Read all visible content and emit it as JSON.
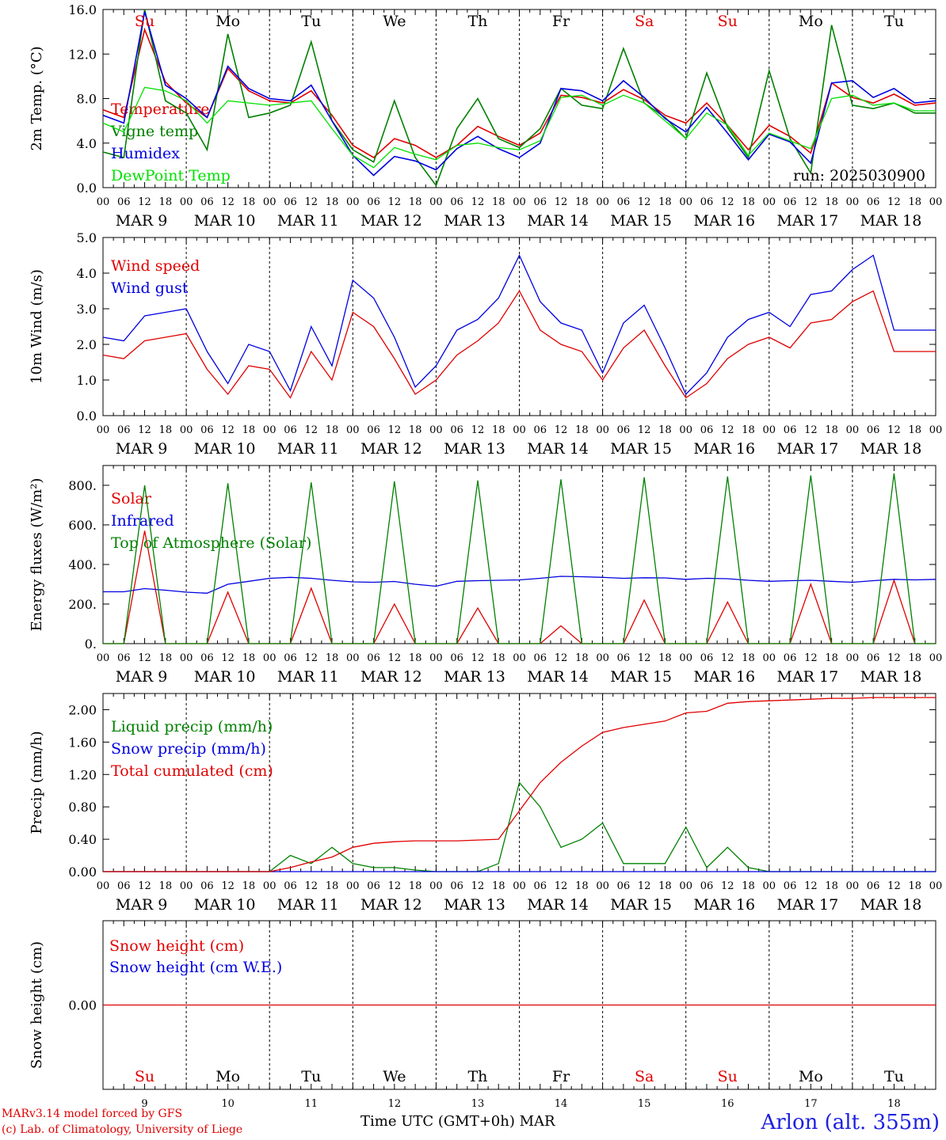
{
  "footer": {
    "credit_line1": "MARv3.14 model forced by GFS",
    "credit_line2": "(c) Lab. of Climatology, University of Liege",
    "time_label": "Time UTC (GMT+0h) MAR",
    "station": "Arlon (alt. 355m)"
  },
  "chart_data": [
    {
      "type": "line",
      "ylabel": "2m Temp. (°C)",
      "ylim": [
        0,
        16
      ],
      "yticks": [
        "0.0",
        "4.0",
        "8.0",
        "12.0",
        "16.0"
      ],
      "annotation": "run: 2025030900",
      "day_names": [
        "Su",
        "Mo",
        "Tu",
        "We",
        "Th",
        "Fr",
        "Sa",
        "Su",
        "Mo",
        "Tu"
      ],
      "weekend_flags": [
        true,
        false,
        false,
        false,
        false,
        false,
        true,
        true,
        false,
        false
      ],
      "x_hours": [
        0,
        6,
        12,
        18,
        24,
        30,
        36,
        42,
        48,
        54,
        60,
        66,
        72,
        78,
        84,
        90,
        96,
        102,
        108,
        114,
        120,
        126,
        132,
        138,
        144,
        150,
        156,
        162,
        168,
        174,
        180,
        186,
        192,
        198,
        204,
        210,
        216,
        222,
        228,
        234,
        240
      ],
      "series": [
        {
          "name": "Temperature",
          "color": "#e00000",
          "values": [
            7.0,
            6.3,
            14.2,
            9.5,
            7.6,
            6.3,
            10.7,
            8.7,
            7.8,
            7.6,
            8.7,
            6.5,
            3.8,
            2.7,
            4.4,
            3.8,
            2.7,
            3.8,
            5.5,
            4.6,
            3.8,
            4.9,
            8.3,
            8.1,
            7.6,
            8.8,
            7.9,
            6.5,
            5.8,
            7.6,
            5.6,
            3.4,
            5.6,
            4.6,
            3.1,
            9.4,
            8.1,
            7.6,
            8.4,
            7.4,
            7.6
          ]
        },
        {
          "name": "Vigne temp",
          "color": "#008000",
          "values": [
            3.2,
            2.7,
            16.0,
            7.8,
            6.7,
            3.4,
            13.8,
            6.3,
            6.7,
            7.4,
            13.1,
            6.0,
            3.4,
            2.3,
            7.8,
            2.7,
            0.2,
            5.3,
            8.0,
            4.4,
            3.6,
            5.3,
            8.9,
            7.4,
            7.1,
            12.5,
            7.6,
            6.3,
            4.4,
            10.3,
            5.4,
            2.7,
            10.5,
            4.4,
            1.3,
            14.6,
            7.4,
            7.1,
            7.6,
            6.7,
            6.7
          ]
        },
        {
          "name": "Humidex",
          "color": "#0000e0",
          "values": [
            6.5,
            5.8,
            15.8,
            9.2,
            8.0,
            6.3,
            10.9,
            8.9,
            8.0,
            7.8,
            9.2,
            6.0,
            2.9,
            1.1,
            2.8,
            2.4,
            1.6,
            3.5,
            4.6,
            3.5,
            2.7,
            4.0,
            8.9,
            8.7,
            7.8,
            9.6,
            8.1,
            6.2,
            5.0,
            7.2,
            4.9,
            2.5,
            4.8,
            4.1,
            2.2,
            9.4,
            9.6,
            8.1,
            8.9,
            7.6,
            7.8
          ]
        },
        {
          "name": "DewPoint Temp",
          "color": "#00e000",
          "values": [
            5.8,
            5.0,
            9.0,
            8.7,
            7.8,
            5.8,
            7.8,
            7.6,
            7.4,
            7.6,
            7.8,
            5.3,
            2.9,
            1.8,
            3.6,
            3.0,
            2.5,
            3.8,
            4.0,
            3.6,
            3.4,
            4.2,
            8.1,
            8.3,
            7.4,
            8.3,
            7.6,
            6.0,
            4.4,
            6.7,
            5.6,
            2.9,
            4.9,
            4.2,
            3.5,
            8.0,
            8.3,
            7.4,
            7.6,
            6.9,
            6.9
          ]
        }
      ]
    },
    {
      "type": "line",
      "ylabel": "10m Wind (m/s)",
      "ylim": [
        0,
        5
      ],
      "yticks": [
        "0.0",
        "1.0",
        "2.0",
        "3.0",
        "4.0",
        "5.0"
      ],
      "x_hours": [
        0,
        6,
        12,
        18,
        24,
        30,
        36,
        42,
        48,
        54,
        60,
        66,
        72,
        78,
        84,
        90,
        96,
        102,
        108,
        114,
        120,
        126,
        132,
        138,
        144,
        150,
        156,
        162,
        168,
        174,
        180,
        186,
        192,
        198,
        204,
        210,
        216,
        222,
        228,
        234,
        240
      ],
      "series": [
        {
          "name": "Wind speed",
          "color": "#e00000",
          "values": [
            1.7,
            1.6,
            2.1,
            2.2,
            2.3,
            1.3,
            0.6,
            1.4,
            1.3,
            0.5,
            1.8,
            1.0,
            2.9,
            2.5,
            1.6,
            0.6,
            1.0,
            1.7,
            2.1,
            2.6,
            3.5,
            2.4,
            2.0,
            1.8,
            1.0,
            1.9,
            2.4,
            1.4,
            0.5,
            0.9,
            1.6,
            2.0,
            2.2,
            1.9,
            2.6,
            2.7,
            3.2,
            3.5,
            1.8,
            1.8,
            1.8
          ]
        },
        {
          "name": "Wind gust",
          "color": "#0000e0",
          "values": [
            2.2,
            2.1,
            2.8,
            2.9,
            3.0,
            1.8,
            0.9,
            2.0,
            1.8,
            0.7,
            2.5,
            1.4,
            3.8,
            3.3,
            2.2,
            0.8,
            1.4,
            2.4,
            2.7,
            3.3,
            4.5,
            3.2,
            2.6,
            2.4,
            1.2,
            2.6,
            3.1,
            1.9,
            0.6,
            1.2,
            2.2,
            2.7,
            2.9,
            2.5,
            3.4,
            3.5,
            4.1,
            4.5,
            2.4,
            2.4,
            2.4
          ]
        }
      ]
    },
    {
      "type": "line",
      "ylabel": "Energy fluxes (W/m²)",
      "ylim": [
        0,
        900
      ],
      "yticks": [
        "0.",
        "200.",
        "400.",
        "600.",
        "800."
      ],
      "x_hours": [
        0,
        6,
        12,
        18,
        24,
        30,
        36,
        42,
        48,
        54,
        60,
        66,
        72,
        78,
        84,
        90,
        96,
        102,
        108,
        114,
        120,
        126,
        132,
        138,
        144,
        150,
        156,
        162,
        168,
        174,
        180,
        186,
        192,
        198,
        204,
        210,
        216,
        222,
        228,
        234,
        240
      ],
      "series": [
        {
          "name": "Solar",
          "color": "#e00000",
          "values": [
            0,
            0,
            570,
            0,
            0,
            0,
            260,
            0,
            0,
            0,
            280,
            0,
            0,
            0,
            200,
            0,
            0,
            0,
            180,
            0,
            0,
            0,
            90,
            0,
            0,
            0,
            220,
            0,
            0,
            0,
            210,
            0,
            0,
            0,
            300,
            0,
            0,
            0,
            320,
            0,
            0
          ]
        },
        {
          "name": "Infrared",
          "color": "#0000e0",
          "values": [
            262,
            262,
            278,
            270,
            260,
            255,
            300,
            315,
            330,
            335,
            330,
            320,
            312,
            310,
            314,
            300,
            290,
            315,
            318,
            320,
            322,
            330,
            340,
            338,
            335,
            330,
            333,
            332,
            325,
            330,
            328,
            320,
            315,
            318,
            320,
            315,
            310,
            318,
            325,
            322,
            325
          ]
        },
        {
          "name": "Top of Atmosphere (Solar)",
          "color": "#008000",
          "values": [
            0,
            0,
            800,
            0,
            0,
            0,
            810,
            0,
            0,
            0,
            815,
            0,
            0,
            0,
            820,
            0,
            0,
            0,
            825,
            0,
            0,
            0,
            830,
            0,
            0,
            0,
            840,
            0,
            0,
            0,
            845,
            0,
            0,
            0,
            850,
            0,
            0,
            0,
            860,
            0,
            0
          ]
        }
      ]
    },
    {
      "type": "line",
      "ylabel": "Precip (mm/h)",
      "ylim": [
        0,
        2.2
      ],
      "yticks": [
        "0.00",
        "0.40",
        "0.80",
        "1.20",
        "1.60",
        "2.00"
      ],
      "x_hours": [
        0,
        6,
        12,
        18,
        24,
        30,
        36,
        42,
        48,
        54,
        60,
        66,
        72,
        78,
        84,
        90,
        96,
        102,
        108,
        114,
        120,
        126,
        132,
        138,
        144,
        150,
        156,
        162,
        168,
        174,
        180,
        186,
        192,
        198,
        204,
        210,
        216,
        222,
        228,
        234,
        240
      ],
      "series": [
        {
          "name": "Liquid precip (mm/h)",
          "color": "#008000",
          "values": [
            0,
            0,
            0,
            0,
            0,
            0,
            0,
            0,
            0,
            0.2,
            0.1,
            0.3,
            0.1,
            0.05,
            0.05,
            0.02,
            0,
            0,
            0,
            0.1,
            1.1,
            0.8,
            0.3,
            0.4,
            0.6,
            0.1,
            0.1,
            0.1,
            0.55,
            0.05,
            0.3,
            0.05,
            0,
            0,
            0,
            0,
            0,
            0,
            0,
            0,
            0
          ]
        },
        {
          "name": "Snow precip (mm/h)",
          "color": "#0000e0",
          "values": [
            0,
            0,
            0,
            0,
            0,
            0,
            0,
            0,
            0,
            0,
            0,
            0,
            0,
            0,
            0,
            0,
            0,
            0,
            0,
            0,
            0,
            0,
            0,
            0,
            0,
            0,
            0,
            0,
            0,
            0,
            0,
            0,
            0,
            0,
            0,
            0,
            0,
            0,
            0,
            0,
            0
          ]
        },
        {
          "name": "Total cumulated (cm)",
          "color": "#e00000",
          "values": [
            0,
            0,
            0,
            0,
            0,
            0,
            0,
            0,
            0,
            0.05,
            0.12,
            0.18,
            0.3,
            0.35,
            0.37,
            0.38,
            0.38,
            0.38,
            0.39,
            0.4,
            0.75,
            1.1,
            1.35,
            1.55,
            1.72,
            1.78,
            1.82,
            1.86,
            1.96,
            1.98,
            2.08,
            2.1,
            2.11,
            2.12,
            2.13,
            2.14,
            2.14,
            2.15,
            2.15,
            2.15,
            2.15
          ]
        }
      ]
    },
    {
      "type": "line",
      "ylabel": "Snow height (cm)",
      "ylim": [
        -1,
        1
      ],
      "yticks": [
        "0.00"
      ],
      "series": [
        {
          "name": "Snow height (cm)",
          "color": "#e00000",
          "values": [
            0,
            0
          ]
        },
        {
          "name": "Snow height (cm W.E.)",
          "color": "#0000e0",
          "values": [
            0,
            0
          ]
        }
      ]
    }
  ],
  "x_axis": {
    "hour_labels": [
      "00",
      "06",
      "12",
      "18"
    ],
    "end_label": "00",
    "date_labels": [
      "MAR  9",
      "MAR 10",
      "MAR 11",
      "MAR 12",
      "MAR 13",
      "MAR 14",
      "MAR 15",
      "MAR 16",
      "MAR 17",
      "MAR 18"
    ],
    "day_numbers": [
      "9",
      "10",
      "11",
      "12",
      "13",
      "14",
      "15",
      "16",
      "17",
      "18"
    ]
  }
}
